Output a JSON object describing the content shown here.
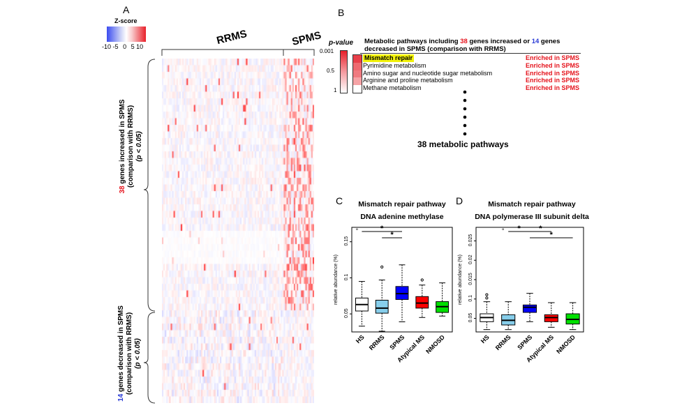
{
  "panels": {
    "a": "A",
    "b": "B",
    "c": "C",
    "d": "D"
  },
  "colorbar": {
    "title": "Z-score",
    "ticks": [
      "-10",
      "-5",
      "0",
      "5",
      "10"
    ],
    "colors": {
      "low": "#3b4cf0",
      "mid": "#ffffff",
      "high": "#e8202a"
    }
  },
  "heatmap": {
    "group_rrms": "RRMS",
    "group_spms": "SPMS",
    "increased": {
      "count": "38",
      "line1": " genes increased in SPMS",
      "line2": "(comparison with RRMS)",
      "line3": "(p < 0.05)"
    },
    "decreased": {
      "count": "14",
      "line1": " genes decreased in SPMS",
      "line2": "(comparison with RRMS)",
      "line3": "(p < 0.05)"
    }
  },
  "panel_b": {
    "pvalue_title": "p-value",
    "pvalue_ticks": [
      "0.001",
      "0.5",
      "1"
    ],
    "header_pre": "Metabolic pathways including ",
    "header_n1": "38",
    "header_mid": " genes increased or ",
    "header_n2": "14",
    "header_post": " genes",
    "header_line2": "decreased in SPMS (comparison with RRMS)",
    "pathways": [
      {
        "name": "Mismatch repair",
        "status": "Enriched in SPMS",
        "highlight": true,
        "pcolor": "#e8404a"
      },
      {
        "name": "Pyrimidine metabolism",
        "status": "Enriched in SPMS",
        "highlight": false,
        "pcolor": "#ee6a70"
      },
      {
        "name": "Amino sugar and nucleotide sugar metabolism",
        "status": "Enriched in SPMS",
        "highlight": false,
        "pcolor": "#f07a80"
      },
      {
        "name": "Arginine and proline metabolism",
        "status": "Enriched in SPMS",
        "highlight": false,
        "pcolor": "#f6a3a6"
      },
      {
        "name": "Methane metabolism",
        "status": "Enriched in SPMS",
        "highlight": false,
        "pcolor": "#ffffff"
      }
    ],
    "footer": "38 metabolic pathways"
  },
  "chart_data": [
    {
      "type": "box",
      "title": "Mismatch repair pathway",
      "subtitle": "DNA adenine methylase",
      "ylabel": "relative abundance (%)",
      "ylim": [
        0.025,
        0.17
      ],
      "yticks": [
        "0.05",
        "0.1",
        "0.15"
      ],
      "categories": [
        "HS",
        "RRMS",
        "SPMS",
        "Atypical MS",
        "NMOSD"
      ],
      "colors": [
        "#ffffff",
        "#87ceeb",
        "#0000ff",
        "#ff0000",
        "#00e000"
      ],
      "series": [
        {
          "name": "HS",
          "min": 0.033,
          "q1": 0.054,
          "median": 0.063,
          "q3": 0.072,
          "max": 0.095,
          "outliers": []
        },
        {
          "name": "RRMS",
          "min": 0.026,
          "q1": 0.051,
          "median": 0.058,
          "q3": 0.069,
          "max": 0.097,
          "outliers": [
            0.115
          ]
        },
        {
          "name": "SPMS",
          "min": 0.039,
          "q1": 0.07,
          "median": 0.078,
          "q3": 0.088,
          "max": 0.118,
          "outliers": []
        },
        {
          "name": "Atypical MS",
          "min": 0.045,
          "q1": 0.058,
          "median": 0.065,
          "q3": 0.074,
          "max": 0.09,
          "outliers": [
            0.097
          ]
        },
        {
          "name": "NMOSD",
          "min": 0.047,
          "q1": 0.052,
          "median": 0.06,
          "q3": 0.067,
          "max": 0.093,
          "outliers": []
        }
      ],
      "significance": [
        {
          "from": 0,
          "to": 2,
          "label": "*",
          "level": 0
        },
        {
          "from": 1,
          "to": 2,
          "label": "*",
          "level": 1
        }
      ],
      "marks": [
        {
          "after": 0,
          "label": "°"
        }
      ]
    },
    {
      "type": "box",
      "title": "Mismatch repair pathway",
      "subtitle": "DNA polymerase III subunit delta",
      "ylabel": "relative abundance (%)",
      "ylim": [
        0.035,
        0.26
      ],
      "yticks": [
        "0.05",
        "0.1",
        "0.015",
        "0.02",
        "0.025"
      ],
      "categories": [
        "HS",
        "RRMS",
        "SPMS",
        "Atypical MS",
        "NMOSD"
      ],
      "colors": [
        "#ffffff",
        "#87ceeb",
        "#0000ff",
        "#ff0000",
        "#00e000"
      ],
      "series": [
        {
          "name": "HS",
          "min": 0.04,
          "q1": 0.057,
          "median": 0.066,
          "q3": 0.074,
          "max": 0.1,
          "outliers": [
            0.108,
            0.115
          ]
        },
        {
          "name": "RRMS",
          "min": 0.04,
          "q1": 0.05,
          "median": 0.06,
          "q3": 0.072,
          "max": 0.1,
          "outliers": []
        },
        {
          "name": "SPMS",
          "min": 0.057,
          "q1": 0.077,
          "median": 0.088,
          "q3": 0.093,
          "max": 0.118,
          "outliers": []
        },
        {
          "name": "Atypical MS",
          "min": 0.045,
          "q1": 0.057,
          "median": 0.066,
          "q3": 0.072,
          "max": 0.098,
          "outliers": []
        },
        {
          "name": "NMOSD",
          "min": 0.04,
          "q1": 0.052,
          "median": 0.062,
          "q3": 0.074,
          "max": 0.098,
          "outliers": []
        }
      ],
      "significance": [
        {
          "from": 1,
          "to": 2,
          "label": "*",
          "level": 0
        },
        {
          "from": 2,
          "to": 3,
          "label": "*",
          "level": 0
        },
        {
          "from": 2,
          "to": 4,
          "label": "*",
          "level": 1
        }
      ],
      "marks": [
        {
          "after": 1,
          "label": "°"
        }
      ]
    }
  ]
}
